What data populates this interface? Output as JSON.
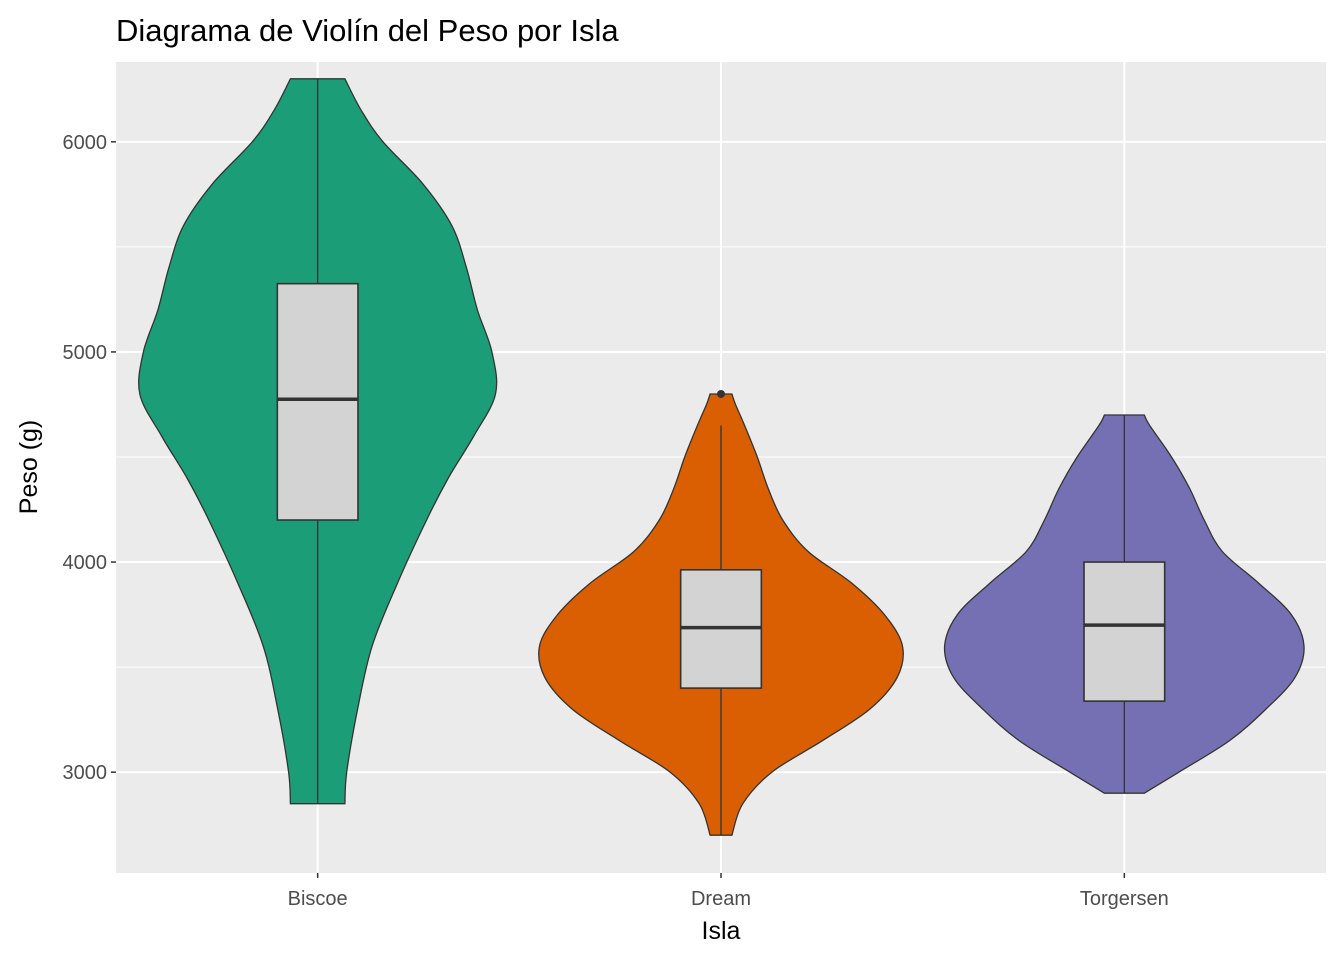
{
  "chart_data": {
    "type": "violin",
    "title": "Diagrama de Violín del Peso por Isla",
    "xlabel": "Isla",
    "ylabel": "Peso (g)",
    "ylim": [
      2520,
      6380
    ],
    "yticks": [
      3000,
      4000,
      5000,
      6000
    ],
    "grid": true,
    "legend": "none",
    "categories": [
      "Biscoe",
      "Dream",
      "Torgersen"
    ],
    "colors": {
      "panel_background": "#ebebeb",
      "grid": "#ffffff",
      "box_fill": "#d3d3d3",
      "outline": "#333333"
    },
    "series": [
      {
        "category": "Biscoe",
        "color": "#1b9e77",
        "min": 2850,
        "q1": 4200,
        "median": 4775,
        "q3": 5325,
        "max": 6300,
        "outliers": [],
        "density": [
          [
            2850,
            0.15
          ],
          [
            3000,
            0.16
          ],
          [
            3300,
            0.22
          ],
          [
            3600,
            0.3
          ],
          [
            3900,
            0.44
          ],
          [
            4200,
            0.6
          ],
          [
            4400,
            0.72
          ],
          [
            4600,
            0.86
          ],
          [
            4800,
            0.98
          ],
          [
            5000,
            0.96
          ],
          [
            5200,
            0.88
          ],
          [
            5400,
            0.82
          ],
          [
            5600,
            0.74
          ],
          [
            5800,
            0.58
          ],
          [
            6000,
            0.36
          ],
          [
            6150,
            0.24
          ],
          [
            6300,
            0.15
          ]
        ]
      },
      {
        "category": "Dream",
        "color": "#d95f02",
        "min": 2700,
        "q1": 3400,
        "median": 3688,
        "q3": 3963,
        "max": 4650,
        "outliers": [
          4800
        ],
        "density": [
          [
            2700,
            0.06
          ],
          [
            2850,
            0.12
          ],
          [
            3000,
            0.28
          ],
          [
            3150,
            0.56
          ],
          [
            3300,
            0.82
          ],
          [
            3450,
            0.97
          ],
          [
            3600,
            1.0
          ],
          [
            3750,
            0.9
          ],
          [
            3900,
            0.72
          ],
          [
            4050,
            0.48
          ],
          [
            4200,
            0.34
          ],
          [
            4350,
            0.26
          ],
          [
            4500,
            0.2
          ],
          [
            4650,
            0.13
          ],
          [
            4750,
            0.08
          ],
          [
            4800,
            0.06
          ]
        ]
      },
      {
        "category": "Torgersen",
        "color": "#7570b3",
        "min": 2900,
        "q1": 3338,
        "median": 3700,
        "q3": 4000,
        "max": 4700,
        "outliers": [],
        "density": [
          [
            2900,
            0.11
          ],
          [
            3000,
            0.3
          ],
          [
            3150,
            0.58
          ],
          [
            3300,
            0.78
          ],
          [
            3450,
            0.94
          ],
          [
            3600,
            0.99
          ],
          [
            3750,
            0.92
          ],
          [
            3900,
            0.74
          ],
          [
            4050,
            0.54
          ],
          [
            4200,
            0.44
          ],
          [
            4350,
            0.36
          ],
          [
            4500,
            0.26
          ],
          [
            4650,
            0.14
          ],
          [
            4700,
            0.11
          ]
        ]
      }
    ]
  }
}
